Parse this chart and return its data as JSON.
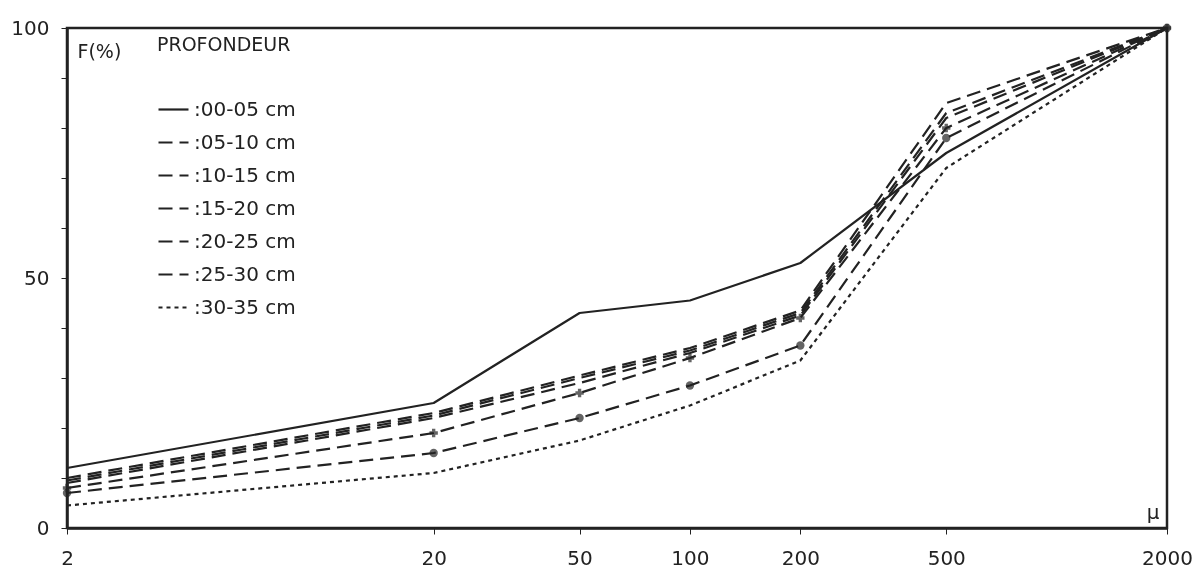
{
  "chart_data": {
    "type": "line",
    "ylabel": "F(%)",
    "legend_title": "PROFONDEUR",
    "xlabel": "μ",
    "x": [
      2,
      20,
      50,
      100,
      200,
      500,
      2000
    ],
    "series": [
      {
        "name": ":00-05 cm",
        "color": "#222222",
        "line_style": "solid",
        "values": [
          12,
          25,
          43,
          45.5,
          53,
          75,
          100
        ]
      },
      {
        "name": ":05-10 cm",
        "color": "#222222",
        "line_style": "dashed",
        "values": [
          10,
          23,
          30.5,
          36,
          43.5,
          85,
          100
        ]
      },
      {
        "name": ":10-15 cm",
        "color": "#222222",
        "line_style": "dashed",
        "values": [
          9.5,
          22.5,
          30,
          35.5,
          43,
          83,
          100
        ]
      },
      {
        "name": ":15-20 cm",
        "color": "#222222",
        "line_style": "dashed",
        "values": [
          9,
          22,
          29,
          35,
          42.5,
          82,
          100
        ]
      },
      {
        "name": ":20-25 cm",
        "color": "#222222",
        "line_style": "dashed",
        "marker": "cross",
        "values": [
          8,
          19,
          27,
          34,
          42,
          80,
          100
        ]
      },
      {
        "name": ":25-30 cm",
        "color": "#222222",
        "line_style": "dashed",
        "marker": "circle",
        "values": [
          7,
          15,
          22,
          28.5,
          36.5,
          78,
          100
        ]
      },
      {
        "name": ":30-35 cm",
        "color": "#222222",
        "line_style": "dotted",
        "values": [
          4.5,
          11,
          17.5,
          24.5,
          33.5,
          72,
          100
        ]
      }
    ],
    "log": "x",
    "xlim": [
      2,
      2000
    ],
    "ylim": [
      0,
      100
    ],
    "xticks": [
      2,
      20,
      50,
      100,
      200,
      500,
      2000
    ],
    "yticks": [
      0,
      {
        "value": 10,
        "label": null
      },
      {
        "value": 20,
        "label": null
      },
      {
        "value": 30,
        "label": null
      },
      {
        "value": 40,
        "label": null
      },
      50,
      {
        "value": 60,
        "label": null
      },
      {
        "value": 70,
        "label": null
      },
      {
        "value": 80,
        "label": null
      },
      {
        "value": 90,
        "label": null
      },
      100
    ],
    "legend": "top left",
    "grid": false
  }
}
